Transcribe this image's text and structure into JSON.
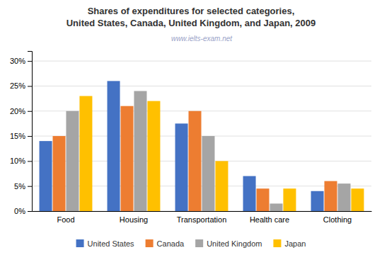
{
  "chart_data": {
    "type": "bar",
    "title": "Shares of expenditures for selected categories,\nUnited States, Canada, United Kingdom, and Japan, 2009",
    "annotations": [
      "www.ielts-exam.net"
    ],
    "categories": [
      "Food",
      "Housing",
      "Transportation",
      "Health care",
      "Clothing"
    ],
    "series": [
      {
        "name": "United States",
        "color": "#4472C4",
        "values": [
          14,
          26,
          17.5,
          7,
          4
        ]
      },
      {
        "name": "Canada",
        "color": "#ED7D31",
        "values": [
          15,
          21,
          20,
          4.5,
          6
        ]
      },
      {
        "name": "United Kingdom",
        "color": "#A5A5A5",
        "values": [
          20,
          24,
          15,
          1.5,
          5.5
        ]
      },
      {
        "name": "Japan",
        "color": "#FFC000",
        "values": [
          23,
          22,
          10,
          4.5,
          4.5
        ]
      }
    ],
    "ylim": [
      0,
      32
    ],
    "yticks": [
      {
        "value": 0,
        "label": "0%"
      },
      {
        "value": 5,
        "label": "5%"
      },
      {
        "value": 10,
        "label": "10%"
      },
      {
        "value": 15,
        "label": "15%"
      },
      {
        "value": 20,
        "label": "20%"
      },
      {
        "value": 25,
        "label": "25%"
      },
      {
        "value": 30,
        "label": "30%"
      }
    ],
    "grid": true,
    "legend": "bottom"
  }
}
